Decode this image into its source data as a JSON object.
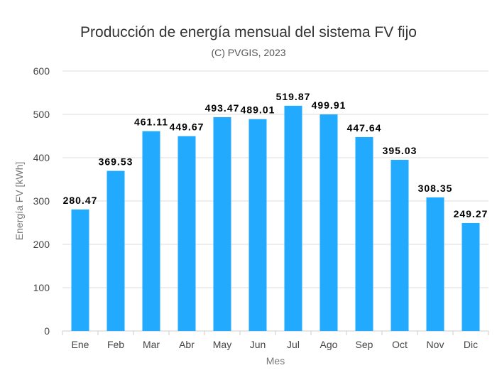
{
  "chart_data": {
    "type": "bar",
    "title": "Producción de energía mensual del sistema FV fijo",
    "subtitle": "(C) PVGIS, 2023",
    "xlabel": "Mes",
    "ylabel": "Energía FV [kWh]",
    "ylim": [
      0,
      600
    ],
    "yticks": [
      0,
      100,
      200,
      300,
      400,
      500,
      600
    ],
    "grid": true,
    "categories": [
      "Ene",
      "Feb",
      "Mar",
      "Abr",
      "May",
      "Jun",
      "Jul",
      "Ago",
      "Sep",
      "Oct",
      "Nov",
      "Dic"
    ],
    "values": [
      280.47,
      369.53,
      461.11,
      449.67,
      493.47,
      489.01,
      519.87,
      499.91,
      447.64,
      395.03,
      308.35,
      249.27
    ],
    "value_labels": [
      "280.47",
      "369.53",
      "461.11",
      "449.67",
      "493.47",
      "489.01",
      "519.87",
      "499.91",
      "447.64",
      "395.03",
      "308.35",
      "249.27"
    ],
    "bar_color": "#22aaff",
    "grid_color": "#dddddd"
  }
}
